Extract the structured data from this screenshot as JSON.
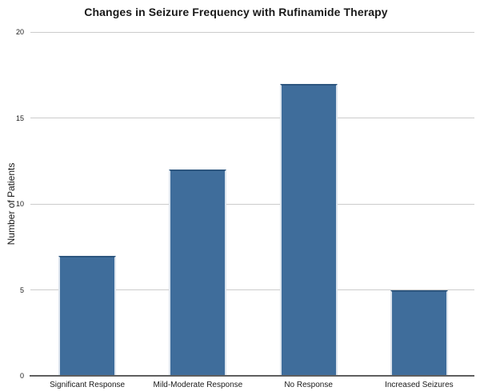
{
  "chart_data": {
    "type": "bar",
    "title": "Changes in Seizure Frequency with Rufinamide Therapy",
    "xlabel": "",
    "ylabel": "Number of Patients",
    "categories": [
      "Significant Response",
      "Mild-Moderate Response",
      "No Response",
      "Increased Seizures"
    ],
    "values": [
      7,
      12,
      17,
      5
    ],
    "ylim": [
      0,
      20
    ],
    "yticks": [
      0,
      5,
      10,
      15,
      20
    ],
    "grid": true,
    "legend": "none",
    "colors": {
      "bar_fill": "#3f6d9b",
      "bar_top_edge": "#2d567f",
      "bar_side_edge": "#dde5ee",
      "gridline": "#cccccc",
      "axis_line": "#5f5f5f",
      "text": "#1a1a1a",
      "background": "#ffffff"
    }
  }
}
